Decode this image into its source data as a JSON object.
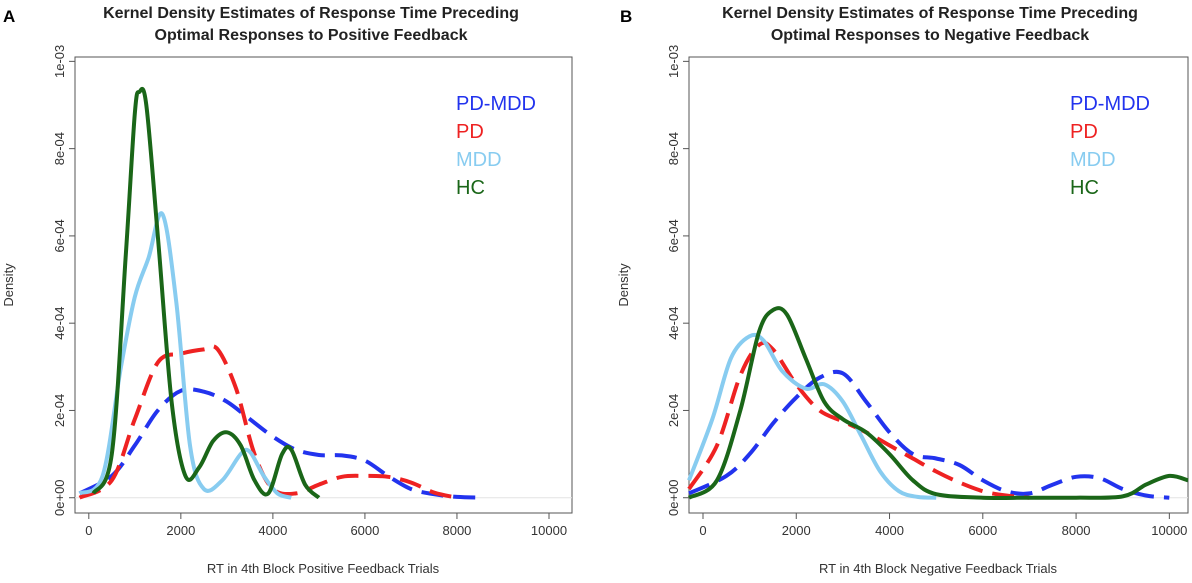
{
  "chart_data": [
    {
      "type": "line",
      "panel": "A",
      "title": [
        "Kernel Density Estimates of Response Time Preceding",
        "Optimal Responses to Positive Feedback"
      ],
      "xlabel": "RT in 4th Block Positive Feedback Trials",
      "ylabel": "Density",
      "xlim": [
        -300,
        10500
      ],
      "ylim": [
        -3.5e-05,
        0.00101
      ],
      "xticks": [
        0,
        2000,
        4000,
        6000,
        8000,
        10000
      ],
      "xtick_labels": [
        "0",
        "2000",
        "4000",
        "6000",
        "8000",
        "10000"
      ],
      "yticks": [
        0,
        0.0002,
        0.0004,
        0.0006,
        0.0008,
        0.001
      ],
      "ytick_labels": [
        "0e+00",
        "2e-04",
        "4e-04",
        "6e-04",
        "8e-04",
        "1e-03"
      ],
      "legend_position": "top-right",
      "series": [
        {
          "name": "PD-MDD",
          "color": "#2233ee",
          "dash": "long-dash",
          "x": [
            -200,
            500,
            1000,
            1500,
            2000,
            2500,
            3000,
            3500,
            4000,
            4500,
            5000,
            5500,
            6000,
            6500,
            7000,
            7500,
            8000,
            8600
          ],
          "y": [
            1e-05,
            5e-05,
            0.00012,
            0.0002,
            0.000245,
            0.000243,
            0.00022,
            0.00018,
            0.00014,
            0.00011,
            9.8e-05,
            9.7e-05,
            8.5e-05,
            5e-05,
            2e-05,
            8e-06,
            2e-06,
            0
          ]
        },
        {
          "name": "PD",
          "color": "#ee2222",
          "dash": "long-dash",
          "x": [
            -200,
            500,
            1000,
            1500,
            2000,
            2500,
            2800,
            3200,
            3600,
            4000,
            4500,
            5000,
            5500,
            6000,
            6500,
            7000,
            7500,
            8000
          ],
          "y": [
            0,
            4e-05,
            0.00018,
            0.00031,
            0.00033,
            0.00034,
            0.00034,
            0.00025,
            0.0001,
            2e-05,
            1e-05,
            3e-05,
            4.8e-05,
            5e-05,
            4.8e-05,
            3.5e-05,
            1.2e-05,
            0
          ]
        },
        {
          "name": "MDD",
          "color": "#88ccf0",
          "dash": "solid",
          "x": [
            -200,
            300,
            700,
            1000,
            1300,
            1600,
            1900,
            2200,
            2500,
            2900,
            3300,
            3500,
            3800,
            4100,
            4400
          ],
          "y": [
            1e-05,
            5e-05,
            0.0003,
            0.00046,
            0.00055,
            0.00065,
            0.00045,
            0.00012,
            2e-05,
            4e-05,
            0.0001,
            0.000105,
            5e-05,
            1e-05,
            0
          ]
        },
        {
          "name": "HC",
          "color": "#1a6618",
          "dash": "solid",
          "x": [
            100,
            500,
            800,
            1000,
            1100,
            1250,
            1500,
            1800,
            2100,
            2400,
            2700,
            3000,
            3300,
            3600,
            3900,
            4200,
            4400,
            4700,
            5000
          ],
          "y": [
            1e-05,
            0.0001,
            0.00055,
            0.00088,
            0.00093,
            0.0009,
            0.0006,
            0.00022,
            5e-05,
            7e-05,
            0.00013,
            0.00015,
            0.00012,
            4e-05,
            1e-05,
            0.0001,
            0.00011,
            3e-05,
            0
          ]
        }
      ]
    },
    {
      "type": "line",
      "panel": "B",
      "title": [
        "Kernel Density Estimates of Response Time Preceding",
        "Optimal Responses to Negative Feedback"
      ],
      "xlabel": "RT in 4th Block Negative Feedback Trials",
      "ylabel": "Density",
      "xlim": [
        -300,
        10400
      ],
      "ylim": [
        -3.5e-05,
        0.00101
      ],
      "xticks": [
        0,
        2000,
        4000,
        6000,
        8000,
        10000
      ],
      "xtick_labels": [
        "0",
        "2000",
        "4000",
        "6000",
        "8000",
        "10000"
      ],
      "yticks": [
        0,
        0.0002,
        0.0004,
        0.0006,
        0.0008,
        0.001
      ],
      "ytick_labels": [
        "0e+00",
        "2e-04",
        "4e-04",
        "6e-04",
        "8e-04",
        "1e-03"
      ],
      "legend_position": "top-right",
      "series": [
        {
          "name": "PD-MDD",
          "color": "#2233ee",
          "dash": "long-dash",
          "x": [
            -300,
            500,
            1000,
            1500,
            2000,
            2500,
            3000,
            3500,
            4000,
            4500,
            5000,
            5500,
            6000,
            6500,
            7000,
            7500,
            8000,
            8500,
            9000,
            9500,
            10000
          ],
          "y": [
            1e-05,
            5e-05,
            0.0001,
            0.00017,
            0.00023,
            0.000275,
            0.000285,
            0.00022,
            0.00015,
            0.0001,
            9e-05,
            7.5e-05,
            4e-05,
            1.5e-05,
            1e-05,
            3e-05,
            4.8e-05,
            4.5e-05,
            2e-05,
            5e-06,
            0
          ]
        },
        {
          "name": "PD",
          "color": "#ee2222",
          "dash": "long-dash",
          "x": [
            -300,
            300,
            800,
            1200,
            1500,
            2000,
            2500,
            3000,
            3500,
            4000,
            4500,
            5000,
            5500,
            6000,
            6500,
            7000
          ],
          "y": [
            2e-05,
            0.00012,
            0.00028,
            0.00035,
            0.00034,
            0.00026,
            0.0002,
            0.000175,
            0.00015,
            0.00012,
            9e-05,
            6e-05,
            3.5e-05,
            1.5e-05,
            5e-06,
            0
          ]
        },
        {
          "name": "MDD",
          "color": "#88ccf0",
          "dash": "solid",
          "x": [
            -300,
            200,
            600,
            1000,
            1300,
            1700,
            2200,
            2600,
            3000,
            3400,
            3800,
            4200,
            4600,
            5000
          ],
          "y": [
            4e-05,
            0.00018,
            0.00032,
            0.00037,
            0.00036,
            0.00029,
            0.00025,
            0.00026,
            0.00022,
            0.00014,
            6e-05,
            1.5e-05,
            2e-06,
            0
          ]
        },
        {
          "name": "HC",
          "color": "#1a6618",
          "dash": "solid",
          "x": [
            -300,
            300,
            800,
            1200,
            1500,
            1800,
            2200,
            2600,
            3000,
            3500,
            4000,
            4500,
            5000,
            6000,
            7000,
            8000,
            9000,
            9500,
            10000,
            10400
          ],
          "y": [
            0,
            4e-05,
            0.0002,
            0.00038,
            0.00043,
            0.00042,
            0.00032,
            0.00022,
            0.00018,
            0.00015,
            0.0001,
            4e-05,
            8e-06,
            0,
            0,
            0,
            3e-06,
            3e-05,
            5e-05,
            4e-05
          ]
        }
      ]
    }
  ]
}
